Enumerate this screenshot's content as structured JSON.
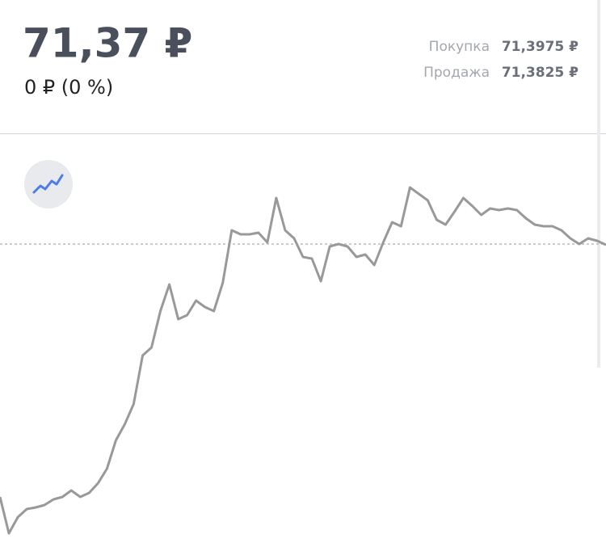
{
  "header": {
    "price": "71,37 ₽",
    "change": "0 ₽ (0 %)",
    "buy_label": "Покупка",
    "buy_value": "71,3975 ₽",
    "sell_label": "Продажа",
    "sell_value": "71,3825 ₽"
  },
  "chart_data": {
    "type": "line",
    "color": "#999999",
    "reference": 71.37,
    "ylim": [
      71.0,
      71.52
    ],
    "values": [
      71.057,
      71.012,
      71.032,
      71.042,
      71.044,
      71.047,
      71.054,
      71.057,
      71.065,
      71.057,
      71.062,
      71.074,
      71.092,
      71.127,
      71.147,
      71.172,
      71.232,
      71.242,
      71.287,
      71.32,
      71.277,
      71.282,
      71.3,
      71.292,
      71.287,
      71.322,
      71.387,
      71.382,
      71.382,
      71.384,
      71.372,
      71.427,
      71.387,
      71.377,
      71.354,
      71.352,
      71.324,
      71.367,
      71.37,
      71.367,
      71.354,
      71.357,
      71.344,
      71.372,
      71.397,
      71.392,
      71.44,
      71.432,
      71.424,
      71.4,
      71.394,
      71.41,
      71.427,
      71.417,
      71.406,
      71.414,
      71.412,
      71.414,
      71.412,
      71.402,
      71.394,
      71.392,
      71.392,
      71.387,
      71.377,
      71.37,
      71.377,
      71.374,
      71.369
    ]
  }
}
